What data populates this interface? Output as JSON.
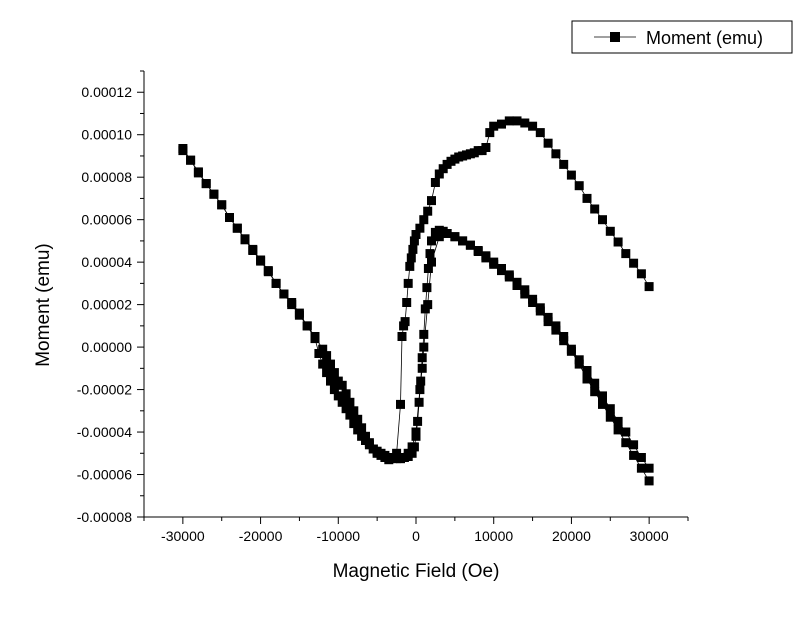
{
  "chart_data": {
    "type": "scatter",
    "xlabel": "Magnetic Field (Oe)",
    "ylabel": "Moment (emu)",
    "xlim": [
      -35000,
      35000
    ],
    "ylim": [
      -8e-05,
      0.00013
    ],
    "x_ticks": [
      -30000,
      -20000,
      -10000,
      0,
      10000,
      20000,
      30000
    ],
    "x_tick_labels": [
      "-30000",
      "-20000",
      "-10000",
      "0",
      "10000",
      "20000",
      "30000"
    ],
    "y_ticks": [
      -8e-05,
      -6e-05,
      -4e-05,
      -2e-05,
      0,
      2e-05,
      4e-05,
      6e-05,
      8e-05,
      0.0001,
      0.00012
    ],
    "y_tick_labels": [
      "-0.00008",
      "-0.00006",
      "-0.00004",
      "-0.00002",
      "0.00000",
      "0.00002",
      "0.00004",
      "0.00006",
      "0.00008",
      "0.00010",
      "0.00012"
    ],
    "legend_position": "top-right",
    "grid": false,
    "series": [
      {
        "name": "Moment (emu)",
        "color": "#000000",
        "marker": "square",
        "line": "thin",
        "segments": [
          [
            [
              30000,
              2.85e-05
            ],
            [
              29000,
              3.45e-05
            ],
            [
              28000,
              3.95e-05
            ],
            [
              27000,
              4.4e-05
            ],
            [
              26000,
              4.95e-05
            ],
            [
              25000,
              5.45e-05
            ],
            [
              24000,
              6e-05
            ],
            [
              23000,
              6.5e-05
            ],
            [
              22000,
              7e-05
            ],
            [
              21000,
              7.6e-05
            ],
            [
              20000,
              8.1e-05
            ],
            [
              19000,
              8.6e-05
            ],
            [
              18000,
              9.1e-05
            ],
            [
              17000,
              9.6e-05
            ],
            [
              16000,
              0.000101
            ],
            [
              15000,
              0.000104
            ],
            [
              14000,
              0.0001055
            ],
            [
              13000,
              0.0001065
            ],
            [
              12000,
              0.0001065
            ],
            [
              11000,
              0.000105
            ],
            [
              10000,
              0.000104
            ],
            [
              9500,
              0.000101
            ],
            [
              9000,
              9.4e-05
            ],
            [
              8500,
              9.25e-05
            ],
            [
              8000,
              9.25e-05
            ],
            [
              7500,
              9.15e-05
            ],
            [
              7000,
              9.1e-05
            ],
            [
              6500,
              9.05e-05
            ],
            [
              6000,
              9e-05
            ],
            [
              5500,
              8.95e-05
            ],
            [
              5000,
              8.85e-05
            ],
            [
              4500,
              8.75e-05
            ],
            [
              4000,
              8.6e-05
            ],
            [
              3500,
              8.4e-05
            ],
            [
              3000,
              8.15e-05
            ],
            [
              2500,
              7.75e-05
            ],
            [
              2000,
              6.9e-05
            ],
            [
              1500,
              6.4e-05
            ],
            [
              1000,
              6e-05
            ],
            [
              500,
              5.6e-05
            ],
            [
              0,
              5.3e-05
            ]
          ],
          [
            [
              0,
              5.3e-05
            ],
            [
              -200,
              5e-05
            ],
            [
              -400,
              4.6e-05
            ],
            [
              -600,
              4.2e-05
            ],
            [
              -800,
              3.8e-05
            ],
            [
              -1000,
              3e-05
            ],
            [
              -1200,
              2.1e-05
            ],
            [
              -1400,
              1.2e-05
            ],
            [
              -1600,
              1e-05
            ],
            [
              -1800,
              5e-06
            ],
            [
              -2000,
              -2.7e-05
            ],
            [
              -2500,
              -5e-05
            ],
            [
              -3000,
              -5.2e-05
            ],
            [
              -3500,
              -5.3e-05
            ],
            [
              -4000,
              -5.2e-05
            ],
            [
              -4500,
              -5.1e-05
            ],
            [
              -5000,
              -5e-05
            ],
            [
              -5500,
              -4.8e-05
            ],
            [
              -6000,
              -4.5e-05
            ],
            [
              -6500,
              -4.2e-05
            ],
            [
              -7000,
              -3.8e-05
            ],
            [
              -7500,
              -3.4e-05
            ],
            [
              -8000,
              -3e-05
            ],
            [
              -8500,
              -2.6e-05
            ],
            [
              -9000,
              -2.2e-05
            ],
            [
              -9500,
              -1.8e-05
            ],
            [
              -10000,
              -1.6e-05
            ],
            [
              -10500,
              -1.2e-05
            ],
            [
              -11000,
              -8e-06
            ],
            [
              -11500,
              -4e-06
            ],
            [
              -12000,
              -1e-06
            ],
            [
              -13000,
              5e-06
            ],
            [
              -14000,
              1e-05
            ],
            [
              -15000,
              1.6e-05
            ],
            [
              -16000,
              2.1e-05
            ],
            [
              -17000,
              2.5e-05
            ],
            [
              -18000,
              3e-05
            ],
            [
              -19000,
              3.6e-05
            ],
            [
              -20000,
              4.1e-05
            ],
            [
              -21000,
              4.6e-05
            ],
            [
              -22000,
              5.1e-05
            ],
            [
              -23000,
              5.6e-05
            ],
            [
              -24000,
              6.1e-05
            ],
            [
              -25000,
              6.7e-05
            ],
            [
              -26000,
              7.2e-05
            ],
            [
              -27000,
              7.7e-05
            ],
            [
              -28000,
              8.2e-05
            ],
            [
              -29000,
              8.8e-05
            ],
            [
              -30000,
              9.35e-05
            ]
          ],
          [
            [
              -30000,
              9.25e-05
            ],
            [
              -29000,
              8.8e-05
            ],
            [
              -28000,
              8.25e-05
            ],
            [
              -27000,
              7.7e-05
            ],
            [
              -26000,
              7.2e-05
            ],
            [
              -25000,
              6.7e-05
            ],
            [
              -24000,
              6.1e-05
            ],
            [
              -23000,
              5.6e-05
            ],
            [
              -22000,
              5.05e-05
            ],
            [
              -21000,
              4.55e-05
            ],
            [
              -20000,
              4.05e-05
            ],
            [
              -19000,
              3.55e-05
            ],
            [
              -18000,
              3e-05
            ],
            [
              -17000,
              2.5e-05
            ],
            [
              -16000,
              2e-05
            ],
            [
              -15000,
              1.5e-05
            ],
            [
              -14000,
              1e-05
            ],
            [
              -13000,
              4e-06
            ],
            [
              -12500,
              -3e-06
            ],
            [
              -12000,
              -8e-06
            ],
            [
              -11500,
              -1.2e-05
            ],
            [
              -11000,
              -1.6e-05
            ],
            [
              -10500,
              -2e-05
            ],
            [
              -10000,
              -2.3e-05
            ],
            [
              -9500,
              -2.6e-05
            ],
            [
              -9000,
              -2.9e-05
            ],
            [
              -8500,
              -3.2e-05
            ],
            [
              -8000,
              -3.6e-05
            ],
            [
              -7500,
              -3.9e-05
            ],
            [
              -7000,
              -4.2e-05
            ],
            [
              -6500,
              -4.4e-05
            ],
            [
              -6000,
              -4.6e-05
            ],
            [
              -5500,
              -4.8e-05
            ],
            [
              -5000,
              -4.9e-05
            ],
            [
              -4500,
              -5e-05
            ],
            [
              -4000,
              -5.1e-05
            ],
            [
              -3500,
              -5.2e-05
            ],
            [
              -3000,
              -5.25e-05
            ],
            [
              -2500,
              -5.25e-05
            ],
            [
              -2000,
              -5.25e-05
            ],
            [
              -1500,
              -5.2e-05
            ],
            [
              -1000,
              -5.15e-05
            ],
            [
              -500,
              -5e-05
            ],
            [
              -200,
              -4.7e-05
            ],
            [
              0,
              -4.2e-05
            ],
            [
              200,
              -3.5e-05
            ],
            [
              400,
              -2.6e-05
            ],
            [
              600,
              -1.6e-05
            ],
            [
              800,
              -5e-06
            ],
            [
              1000,
              6e-06
            ],
            [
              1200,
              1.8e-05
            ],
            [
              1400,
              2.8e-05
            ],
            [
              1600,
              3.7e-05
            ],
            [
              1800,
              4.4e-05
            ],
            [
              2000,
              5e-05
            ],
            [
              2500,
              5.4e-05
            ],
            [
              3000,
              5.5e-05
            ],
            [
              3500,
              5.45e-05
            ],
            [
              4000,
              5.35e-05
            ],
            [
              5000,
              5.2e-05
            ],
            [
              6000,
              5e-05
            ],
            [
              7000,
              4.8e-05
            ],
            [
              8000,
              4.55e-05
            ],
            [
              9000,
              4.3e-05
            ],
            [
              10000,
              4e-05
            ],
            [
              11000,
              3.7e-05
            ],
            [
              12000,
              3.4e-05
            ],
            [
              13000,
              3.05e-05
            ],
            [
              14000,
              2.7e-05
            ],
            [
              15000,
              2.25e-05
            ],
            [
              16000,
              1.85e-05
            ],
            [
              17000,
              1.4e-05
            ],
            [
              18000,
              1e-05
            ],
            [
              19000,
              5e-06
            ],
            [
              20000,
              -1e-06
            ],
            [
              21000,
              -6e-06
            ],
            [
              22000,
              -1.1e-05
            ],
            [
              23000,
              -1.7e-05
            ],
            [
              24000,
              -2.3e-05
            ],
            [
              25000,
              -2.9e-05
            ],
            [
              26000,
              -3.5e-05
            ],
            [
              27000,
              -4e-05
            ],
            [
              28000,
              -4.6e-05
            ],
            [
              29000,
              -5.2e-05
            ],
            [
              30000,
              -5.7e-05
            ]
          ],
          [
            [
              30000,
              -6.3e-05
            ],
            [
              29000,
              -5.7e-05
            ],
            [
              28000,
              -5.1e-05
            ],
            [
              27000,
              -4.5e-05
            ],
            [
              26000,
              -3.9e-05
            ],
            [
              25000,
              -3.3e-05
            ],
            [
              24000,
              -2.7e-05
            ],
            [
              23000,
              -2.1e-05
            ],
            [
              22000,
              -1.5e-05
            ],
            [
              21000,
              -8e-06
            ],
            [
              20000,
              -2e-06
            ],
            [
              19000,
              3e-06
            ],
            [
              18000,
              8e-06
            ],
            [
              17000,
              1.2e-05
            ],
            [
              16000,
              1.7e-05
            ],
            [
              15000,
              2.1e-05
            ],
            [
              14000,
              2.5e-05
            ],
            [
              13000,
              2.9e-05
            ],
            [
              12000,
              3.3e-05
            ],
            [
              11000,
              3.6e-05
            ],
            [
              10000,
              3.9e-05
            ],
            [
              9000,
              4.2e-05
            ],
            [
              8000,
              4.5e-05
            ],
            [
              7000,
              4.8e-05
            ],
            [
              6000,
              5e-05
            ],
            [
              5000,
              5.2e-05
            ],
            [
              4000,
              5.35e-05
            ],
            [
              3000,
              5.2e-05
            ],
            [
              2000,
              4e-05
            ],
            [
              1500,
              2e-05
            ],
            [
              1000,
              0.0
            ],
            [
              800,
              -1e-05
            ],
            [
              500,
              -2e-05
            ],
            [
              0,
              -4e-05
            ],
            [
              -500,
              -4.7e-05
            ],
            [
              -1000,
              -5e-05
            ],
            [
              -1500,
              -5.2e-05
            ],
            [
              -2000,
              -5.25e-05
            ]
          ]
        ]
      }
    ]
  }
}
